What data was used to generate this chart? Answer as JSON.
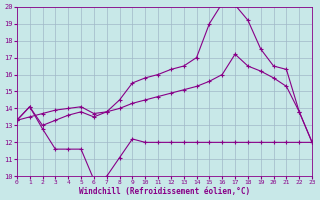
{
  "xlabel": "Windchill (Refroidissement éolien,°C)",
  "bg_color": "#c8e8e8",
  "grid_color": "#a0b8c8",
  "line_color": "#880088",
  "xlim_min": 0,
  "xlim_max": 23,
  "ylim_min": 10,
  "ylim_max": 20,
  "xticks": [
    0,
    1,
    2,
    3,
    4,
    5,
    6,
    7,
    8,
    9,
    10,
    11,
    12,
    13,
    14,
    15,
    16,
    17,
    18,
    19,
    20,
    21,
    22,
    23
  ],
  "yticks": [
    10,
    11,
    12,
    13,
    14,
    15,
    16,
    17,
    18,
    19,
    20
  ],
  "series1_x": [
    0,
    1,
    2,
    3,
    4,
    5,
    6,
    7,
    8,
    9,
    10,
    11,
    12,
    13,
    14,
    15,
    16,
    17,
    18,
    19,
    20,
    21,
    22,
    23
  ],
  "series1_y": [
    13.3,
    14.1,
    12.8,
    11.6,
    11.6,
    11.6,
    9.8,
    10.0,
    11.1,
    12.2,
    12.0,
    12.0,
    12.0,
    12.0,
    12.0,
    12.0,
    12.0,
    12.0,
    12.0,
    12.0,
    12.0,
    12.0,
    12.0,
    12.0
  ],
  "series2_x": [
    0,
    1,
    2,
    3,
    4,
    5,
    6,
    7,
    8,
    9,
    10,
    11,
    12,
    13,
    14,
    15,
    16,
    17,
    18,
    19,
    20,
    21,
    22,
    23
  ],
  "series2_y": [
    13.3,
    14.1,
    13.0,
    13.3,
    13.6,
    13.8,
    13.5,
    13.8,
    14.5,
    15.5,
    15.8,
    16.0,
    16.3,
    16.5,
    17.0,
    19.0,
    20.2,
    20.1,
    19.2,
    17.5,
    16.5,
    16.3,
    13.8,
    12.0
  ],
  "series3_x": [
    0,
    1,
    2,
    3,
    4,
    5,
    6,
    7,
    8,
    9,
    10,
    11,
    12,
    13,
    14,
    15,
    16,
    17,
    18,
    19,
    20,
    21,
    22,
    23
  ],
  "series3_y": [
    13.3,
    13.5,
    13.7,
    13.9,
    14.0,
    14.1,
    13.7,
    13.8,
    14.0,
    14.3,
    14.5,
    14.7,
    14.9,
    15.1,
    15.3,
    15.6,
    16.0,
    17.2,
    16.5,
    16.2,
    15.8,
    15.3,
    13.8,
    12.0
  ]
}
